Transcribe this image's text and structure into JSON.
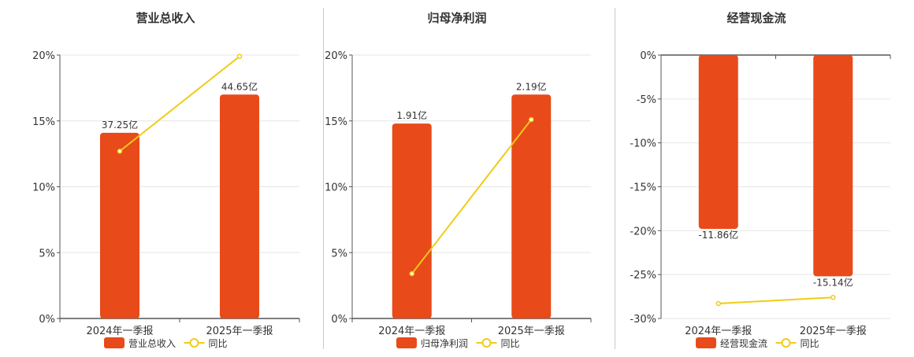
{
  "chart_data": [
    {
      "type": "bar",
      "title": "营业总收入",
      "categories": [
        "2024年一季报",
        "2025年一季报"
      ],
      "ylim": [
        0,
        20
      ],
      "yticks": [
        "0%",
        "5%",
        "10%",
        "15%",
        "20%"
      ],
      "bar_heights_pct": [
        14.1,
        17.0
      ],
      "bar_labels": [
        "37.25亿",
        "44.65亿"
      ],
      "line_values_pct": [
        12.7,
        19.9
      ],
      "legend": {
        "bar": "营业总收入",
        "line": "同比"
      },
      "legend_position": "bottom",
      "grid": true
    },
    {
      "type": "bar",
      "title": "归母净利润",
      "categories": [
        "2024年一季报",
        "2025年一季报"
      ],
      "ylim": [
        0,
        20
      ],
      "yticks": [
        "0%",
        "5%",
        "10%",
        "15%",
        "20%"
      ],
      "bar_heights_pct": [
        14.8,
        17.0
      ],
      "bar_labels": [
        "1.91亿",
        "2.19亿"
      ],
      "line_values_pct": [
        3.4,
        15.1
      ],
      "legend": {
        "bar": "归母净利润",
        "line": "同比"
      },
      "legend_position": "bottom",
      "grid": true
    },
    {
      "type": "bar",
      "title": "经营现金流",
      "categories": [
        "2024年一季报",
        "2025年一季报"
      ],
      "ylim": [
        -30,
        0
      ],
      "yticks": [
        "0%",
        "-5%",
        "-10%",
        "-15%",
        "-20%",
        "-25%",
        "-30%"
      ],
      "bar_heights_pct": [
        -19.8,
        -25.2
      ],
      "bar_labels": [
        "-11.86亿",
        "-15.14亿"
      ],
      "line_values_pct": [
        -28.3,
        -27.6
      ],
      "legend": {
        "bar": "经营现金流",
        "line": "同比"
      },
      "legend_position": "bottom",
      "grid": true
    }
  ],
  "colors": {
    "bar": "#e84a1a",
    "line": "#f0cc17",
    "grid": "#e6e6e6",
    "axis": "#555555"
  }
}
